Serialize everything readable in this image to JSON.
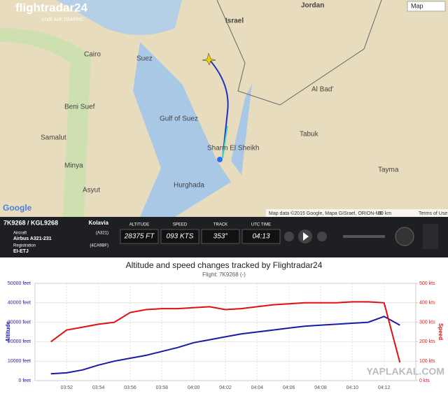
{
  "map": {
    "brand": "flightradar24",
    "tagline": "LIVE AIR TRAFFIC",
    "map_type": "Map",
    "labels": [
      "Jordan",
      "Israel",
      "Cairo",
      "Suez",
      "Beni Suef",
      "Samalut",
      "Minya",
      "Asyut",
      "Hurghada",
      "Tabuk",
      "Tayma",
      "Al Bad'",
      "Sharm El Sheikh",
      "Gulf of Suez"
    ],
    "google": "Google",
    "attribution": "Map data ©2015 Google, Mapa GISrael, ORION-ME",
    "scale": "50 km",
    "terms": "Terms of Use"
  },
  "panel": {
    "flight": "7K9268 / KGL9268",
    "airline": "Kolavia",
    "aircraft_label": "Aircraft",
    "aircraft_code": "(A321)",
    "aircraft": "Airbus A321-231",
    "registration_label": "Registration",
    "hex": "(4CA9BF)",
    "registration": "EI-ETJ",
    "readouts": [
      {
        "label": "ALTITUDE",
        "value": "28375 FT"
      },
      {
        "label": "SPEED",
        "value": "093 KTS"
      },
      {
        "label": "TRACK",
        "value": "353°"
      },
      {
        "label": "UTC TIME",
        "value": "04:13"
      }
    ]
  },
  "watermark": "YAPLAKAL.COM",
  "chart_data": {
    "type": "line",
    "title": "Altitude and speed changes tracked by Flightradar24",
    "subtitle": "Flight: 7K9268 (-)",
    "ylabel": "Altitude",
    "y2label": "Speed",
    "x": [
      "03:51",
      "03:52",
      "03:53",
      "03:54",
      "03:55",
      "03:56",
      "03:57",
      "03:58",
      "03:59",
      "04:00",
      "04:01",
      "04:02",
      "04:03",
      "04:04",
      "04:05",
      "04:06",
      "04:07",
      "04:08",
      "04:09",
      "04:10",
      "04:11",
      "04:12",
      "04:13"
    ],
    "xlim": [
      "03:50",
      "04:14"
    ],
    "xticks": [
      "03:52",
      "03:54",
      "03:56",
      "03:58",
      "04:00",
      "04:02",
      "04:04",
      "04:06",
      "04:08",
      "04:10",
      "04:12"
    ],
    "ylim": [
      0,
      50000
    ],
    "yticks": [
      {
        "value": 0,
        "label": "0 feet"
      },
      {
        "value": 10000,
        "label": "10000 feet"
      },
      {
        "value": 20000,
        "label": "20000 feet"
      },
      {
        "value": 30000,
        "label": "30000 feet"
      },
      {
        "value": 40000,
        "label": "40000 feet"
      },
      {
        "value": 50000,
        "label": "50000 feet"
      }
    ],
    "y2lim": [
      0,
      500
    ],
    "y2ticks": [
      {
        "value": 0,
        "label": "0 kts"
      },
      {
        "value": 100,
        "label": "100 kts"
      },
      {
        "value": 200,
        "label": "200 kts"
      },
      {
        "value": 300,
        "label": "300 kts"
      },
      {
        "value": 400,
        "label": "400 kts"
      },
      {
        "value": 500,
        "label": "500 kts"
      }
    ],
    "grid": true,
    "series": [
      {
        "name": "Altitude",
        "color": "#1a1aa6",
        "values": [
          3500,
          4000,
          5500,
          8000,
          10000,
          11500,
          13000,
          15000,
          17000,
          19500,
          21000,
          22500,
          24000,
          25000,
          26000,
          27000,
          28000,
          28500,
          29000,
          29500,
          30000,
          33000,
          28500
        ]
      },
      {
        "name": "Speed",
        "color": "#e01010",
        "axis": "y2",
        "values": [
          200,
          260,
          275,
          290,
          300,
          350,
          365,
          370,
          370,
          375,
          380,
          365,
          370,
          380,
          390,
          395,
          400,
          400,
          400,
          405,
          405,
          400,
          93
        ]
      }
    ]
  }
}
